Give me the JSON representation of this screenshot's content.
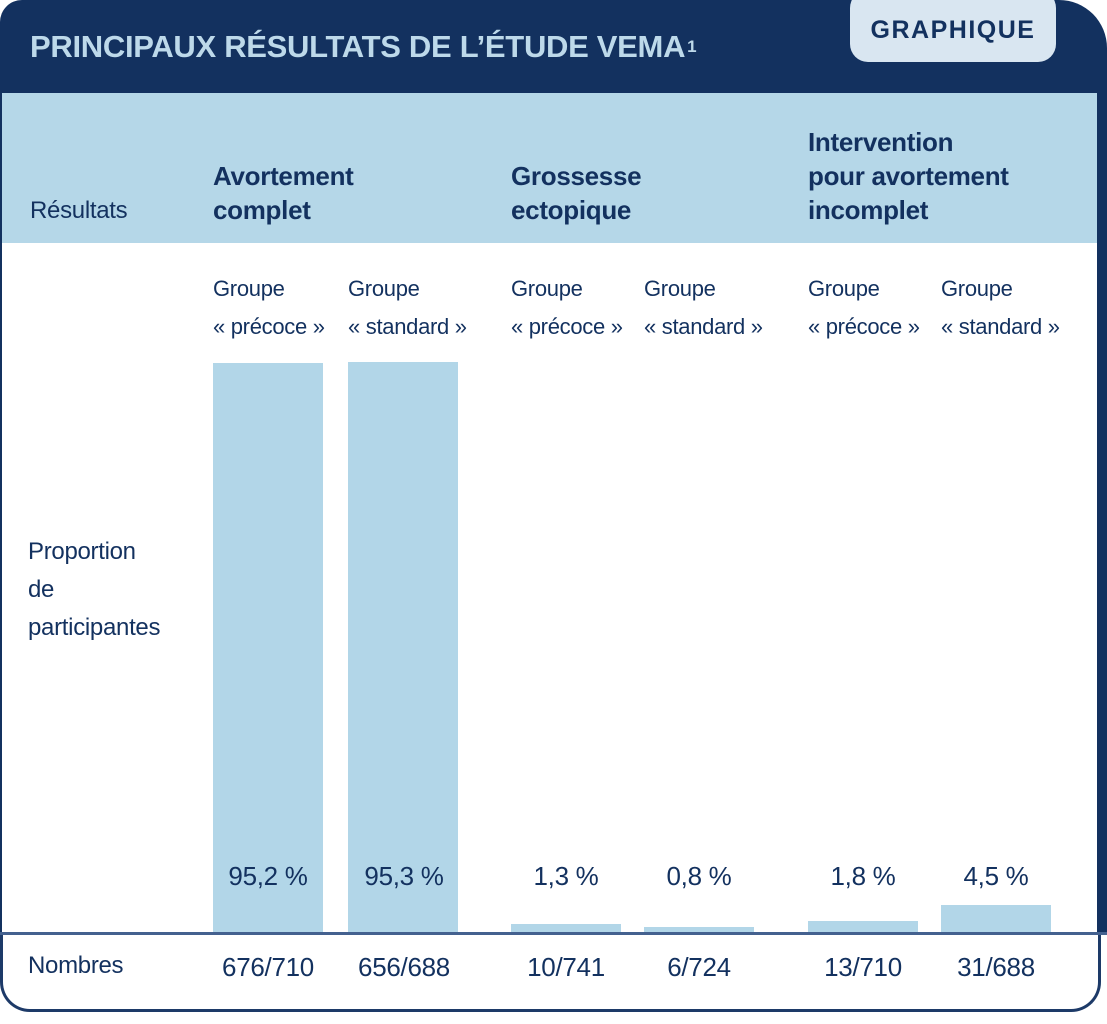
{
  "colors": {
    "navy": "#13315f",
    "band_blue": "#b5d7e8",
    "bar_blue": "#b2d6e8",
    "badge_blue": "#d9e6f1",
    "title_text": "#bdd9ea",
    "baseline": "#44618f"
  },
  "header": {
    "title": "PRINCIPAUX RÉSULTATS DE L’ÉTUDE VEMA",
    "footnote_marker": "1",
    "badge_label": "GRAPHIQUE"
  },
  "band": {
    "row_label": "Résultats",
    "group_headers": [
      {
        "label": "Avortement\ncomplet"
      },
      {
        "label": "Grossesse\nectopique"
      },
      {
        "label": "Intervention\npour avortement\nincomplet"
      }
    ]
  },
  "chart": {
    "y_axis_label": "Proportion\nde\nparticipantes",
    "numbers_row_label": "Nombres",
    "columns": [
      {
        "sub_label": "Groupe\n« précoce »",
        "pct_label": "95,2 %",
        "value_pct": 95.2,
        "count": "676/710"
      },
      {
        "sub_label": "Groupe\n« standard »",
        "pct_label": "95,3 %",
        "value_pct": 95.3,
        "count": "656/688"
      },
      {
        "sub_label": "Groupe\n« précoce »",
        "pct_label": "1,3 %",
        "value_pct": 1.3,
        "count": "10/741"
      },
      {
        "sub_label": "Groupe\n« standard »",
        "pct_label": "0,8 %",
        "value_pct": 0.8,
        "count": "6/724"
      },
      {
        "sub_label": "Groupe\n« précoce »",
        "pct_label": "1,8 %",
        "value_pct": 1.8,
        "count": "13/710"
      },
      {
        "sub_label": "Groupe\n« standard »",
        "pct_label": "4,5 %",
        "value_pct": 4.5,
        "count": "31/688"
      }
    ]
  },
  "chart_data": {
    "type": "bar",
    "title": "PRINCIPAUX RÉSULTATS DE L'ÉTUDE VEMA (1)",
    "xlabel": "Résultats",
    "ylabel": "Proportion de participantes",
    "ylim": [
      0,
      100
    ],
    "grid": false,
    "legend_position": "none",
    "groups": [
      "Avortement complet",
      "Grossesse ectopique",
      "Intervention pour avortement incomplet"
    ],
    "series_names": [
      "Groupe « précoce »",
      "Groupe « standard »"
    ],
    "categories": [
      "Avortement complet — Groupe « précoce »",
      "Avortement complet — Groupe « standard »",
      "Grossesse ectopique — Groupe « précoce »",
      "Grossesse ectopique — Groupe « standard »",
      "Intervention pour avortement incomplet — Groupe « précoce »",
      "Intervention pour avortement incomplet — Groupe « standard »"
    ],
    "values": [
      95.2,
      95.3,
      1.3,
      0.8,
      1.8,
      4.5
    ],
    "value_labels": [
      "95,2 %",
      "95,3 %",
      "1,3 %",
      "0,8 %",
      "1,8 %",
      "4,5 %"
    ],
    "counts_row_label": "Nombres",
    "counts": [
      "676/710",
      "656/688",
      "10/741",
      "6/724",
      "13/710",
      "31/688"
    ]
  }
}
